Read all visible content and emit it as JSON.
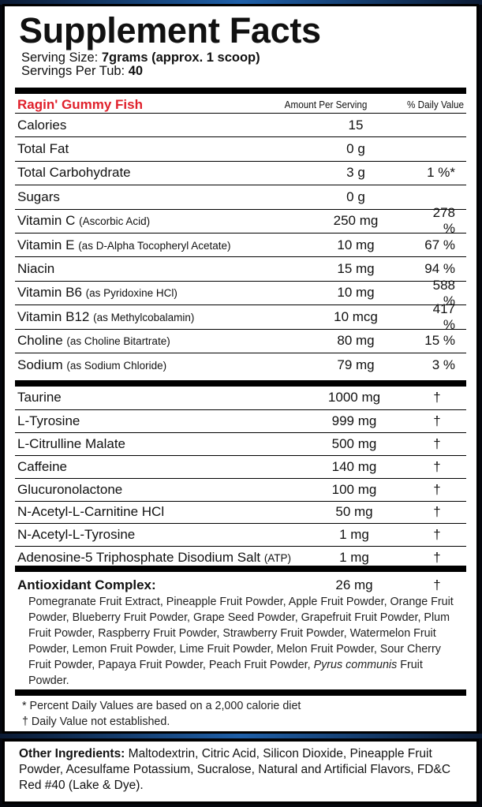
{
  "title": "Supplement Facts",
  "serving_size_label": "Serving Size:",
  "serving_size_value": "7grams (approx. 1 scoop)",
  "servings_label": "Servings Per Tub:",
  "servings_value": "40",
  "header": {
    "product": "Ragin' Gummy Fish",
    "amount": "Amount Per Serving",
    "dv": "% Daily Value"
  },
  "nutrients": [
    {
      "name": "Calories",
      "note": "",
      "amount": "15",
      "dv": ""
    },
    {
      "name": "Total Fat",
      "note": "",
      "amount": "0 g",
      "dv": ""
    },
    {
      "name": "Total Carbohydrate",
      "note": "",
      "amount": "3 g",
      "dv": "1 %*"
    },
    {
      "name": "Sugars",
      "note": "",
      "amount": "0 g",
      "dv": ""
    },
    {
      "name": "Vitamin C",
      "note": "(Ascorbic Acid)",
      "amount": "250 mg",
      "dv": "278 %"
    },
    {
      "name": "Vitamin E",
      "note": "(as D-Alpha Tocopheryl Acetate)",
      "amount": "10 mg",
      "dv": "67 %"
    },
    {
      "name": "Niacin",
      "note": "",
      "amount": "15 mg",
      "dv": "94 %"
    },
    {
      "name": "Vitamin B6",
      "note": "(as Pyridoxine HCl)",
      "amount": "10 mg",
      "dv": "588 %"
    },
    {
      "name": "Vitamin B12",
      "note": "(as Methylcobalamin)",
      "amount": "10 mcg",
      "dv": "417 %"
    },
    {
      "name": "Choline",
      "note": "(as Choline Bitartrate)",
      "amount": "80 mg",
      "dv": "15 %"
    },
    {
      "name": "Sodium",
      "note": "(as Sodium Chloride)",
      "amount": "79 mg",
      "dv": "3 %"
    }
  ],
  "ingredients": [
    {
      "name": "Taurine",
      "note": "",
      "amount": "1000 mg",
      "dv": "†"
    },
    {
      "name": "L-Tyrosine",
      "note": "",
      "amount": "999 mg",
      "dv": "†"
    },
    {
      "name": "L-Citrulline Malate",
      "note": "",
      "amount": "500 mg",
      "dv": "†"
    },
    {
      "name": "Caffeine",
      "note": "",
      "amount": "140 mg",
      "dv": "†"
    },
    {
      "name": "Glucuronolactone",
      "note": "",
      "amount": "100 mg",
      "dv": "†"
    },
    {
      "name": "N-Acetyl-L-Carnitine HCl",
      "note": "",
      "amount": "50 mg",
      "dv": "†"
    },
    {
      "name": "N-Acetyl-L-Tyrosine",
      "note": "",
      "amount": "1 mg",
      "dv": "†"
    },
    {
      "name": "Adenosine-5 Triphosphate Disodium Salt",
      "note": "(ATP)",
      "amount": "1 mg",
      "dv": "†"
    }
  ],
  "antioxidant": {
    "label": "Antioxidant Complex:",
    "amount": "26 mg",
    "dv": "†",
    "list": "Pomegranate Fruit Extract, Pineapple Fruit Powder, Apple Fruit Powder, Orange Fruit Powder, Blueberry Fruit Powder, Grape Seed Powder, Grapefruit Fruit Powder, Plum Fruit Powder, Raspberry Fruit Powder, Strawberry Fruit Powder, Watermelon Fruit Powder, Lemon Fruit Powder, Lime Fruit Powder, Melon Fruit Powder, Sour Cherry Fruit Powder, Papaya Fruit Powder, Peach Fruit Powder,",
    "list_italic": "Pyrus communis",
    "list_end": " Fruit Powder."
  },
  "footnotes": [
    "* Percent Daily Values are based on a 2,000 calorie diet",
    "† Daily Value not established."
  ],
  "other": {
    "label": "Other Ingredients:",
    "text": " Maltodextrin, Citric Acid, Silicon Dioxide, Pineapple Fruit Powder, Acesulfame Potassium, Sucralose, Natural and Artificial Flavors, FD&C Red #40 (Lake & Dye)."
  },
  "colors": {
    "accent": "#e0202b",
    "background": "#05070d"
  }
}
